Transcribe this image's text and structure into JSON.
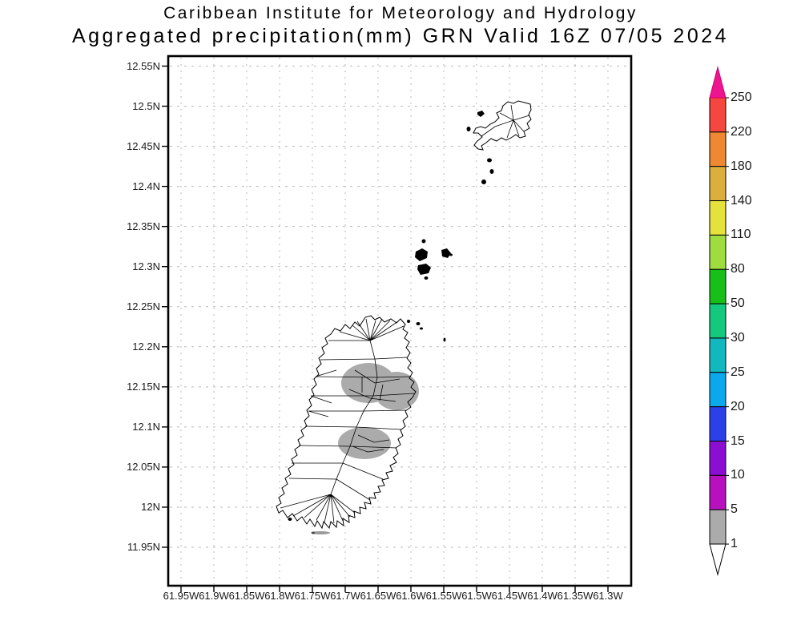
{
  "title": {
    "line1": "Caribbean Institute for Meteorology and Hydrology",
    "line2": "Aggregated precipitation(mm) GRN Valid 16Z 07/05 2024"
  },
  "axes": {
    "lat_labels": [
      "12.55N",
      "12.5N",
      "12.45N",
      "12.4N",
      "12.35N",
      "12.3N",
      "12.25N",
      "12.2N",
      "12.15N",
      "12.1N",
      "12.05N",
      "12N",
      "11.95N"
    ],
    "lon_labels": [
      "61.95W",
      "61.9W",
      "61.85W",
      "61.8W",
      "61.75W",
      "61.7W",
      "61.65W",
      "61.6W",
      "61.55W",
      "61.5W",
      "61.45W",
      "61.4W",
      "61.35W",
      "61.3W"
    ]
  },
  "colorbar": {
    "tick_labels_top_to_bottom": [
      "250",
      "220",
      "180",
      "140",
      "110",
      "80",
      "50",
      "30",
      "25",
      "20",
      "15",
      "10",
      "5",
      "1"
    ],
    "segment_colors_top_to_bottom": [
      "#f5463f",
      "#ef8833",
      "#dcae3d",
      "#e5e23e",
      "#9fdc3f",
      "#18bf18",
      "#14c87e",
      "#12b8bd",
      "#0ba9ec",
      "#2b40e9",
      "#8b0fd2",
      "#b711be",
      "#ababab"
    ],
    "above_max_arrow_color": "#ed1490",
    "below_min_arrow_color": "#ffffff"
  },
  "precipitation_shading": {
    "unit": "mm",
    "value_range": "1-5",
    "shade_color": "#ababab",
    "region_count": 2,
    "regions": [
      {
        "area": "north-central Grenada",
        "value_range_mm": "1-5"
      },
      {
        "area": "south-central Grenada",
        "value_range_mm": "1-5"
      }
    ]
  }
}
